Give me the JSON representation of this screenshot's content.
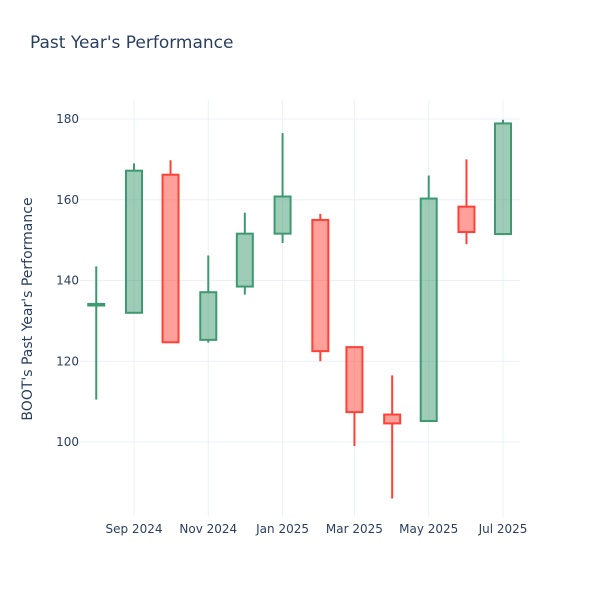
{
  "chart_data": {
    "type": "candlestick",
    "title": "Past Year's Performance",
    "ylabel": "BOOT's Past Year's Performance",
    "xlabel": "",
    "ylim": [
      82,
      185
    ],
    "grid": true,
    "x_ticks": [
      {
        "label": "Sep 2024",
        "date": "2024-09-01"
      },
      {
        "label": "Nov 2024",
        "date": "2024-11-01"
      },
      {
        "label": "Jan 2025",
        "date": "2025-01-01"
      },
      {
        "label": "Mar 2025",
        "date": "2025-03-01"
      },
      {
        "label": "May 2025",
        "date": "2025-05-01"
      },
      {
        "label": "Jul 2025",
        "date": "2025-07-01"
      }
    ],
    "y_ticks": [
      100,
      120,
      140,
      160,
      180
    ],
    "colors": {
      "increasing": "#3d9970",
      "decreasing": "#ff4136",
      "grid": "#ebf0f8",
      "text": "#2a3f5f"
    },
    "candles": [
      {
        "date": "2024-08-01",
        "open": 133.8,
        "high": 143.5,
        "low": 110.5,
        "close": 134.2
      },
      {
        "date": "2024-09-01",
        "open": 132.0,
        "high": 169.0,
        "low": 132.0,
        "close": 167.2
      },
      {
        "date": "2024-10-01",
        "open": 166.2,
        "high": 169.8,
        "low": 124.5,
        "close": 124.7
      },
      {
        "date": "2024-11-01",
        "open": 125.3,
        "high": 146.2,
        "low": 124.6,
        "close": 137.1
      },
      {
        "date": "2024-12-01",
        "open": 138.5,
        "high": 156.8,
        "low": 136.5,
        "close": 151.6
      },
      {
        "date": "2025-01-01",
        "open": 151.6,
        "high": 176.5,
        "low": 149.3,
        "close": 160.8
      },
      {
        "date": "2025-02-01",
        "open": 155.0,
        "high": 156.5,
        "low": 120.0,
        "close": 122.5
      },
      {
        "date": "2025-03-01",
        "open": 123.5,
        "high": 123.5,
        "low": 99.0,
        "close": 107.4
      },
      {
        "date": "2025-04-01",
        "open": 106.8,
        "high": 116.5,
        "low": 86.0,
        "close": 104.6
      },
      {
        "date": "2025-05-01",
        "open": 105.2,
        "high": 166.0,
        "low": 105.2,
        "close": 160.3
      },
      {
        "date": "2025-06-01",
        "open": 158.3,
        "high": 170.0,
        "low": 149.0,
        "close": 152.0
      },
      {
        "date": "2025-07-01",
        "open": 151.5,
        "high": 179.8,
        "low": 151.5,
        "close": 178.9
      }
    ]
  }
}
